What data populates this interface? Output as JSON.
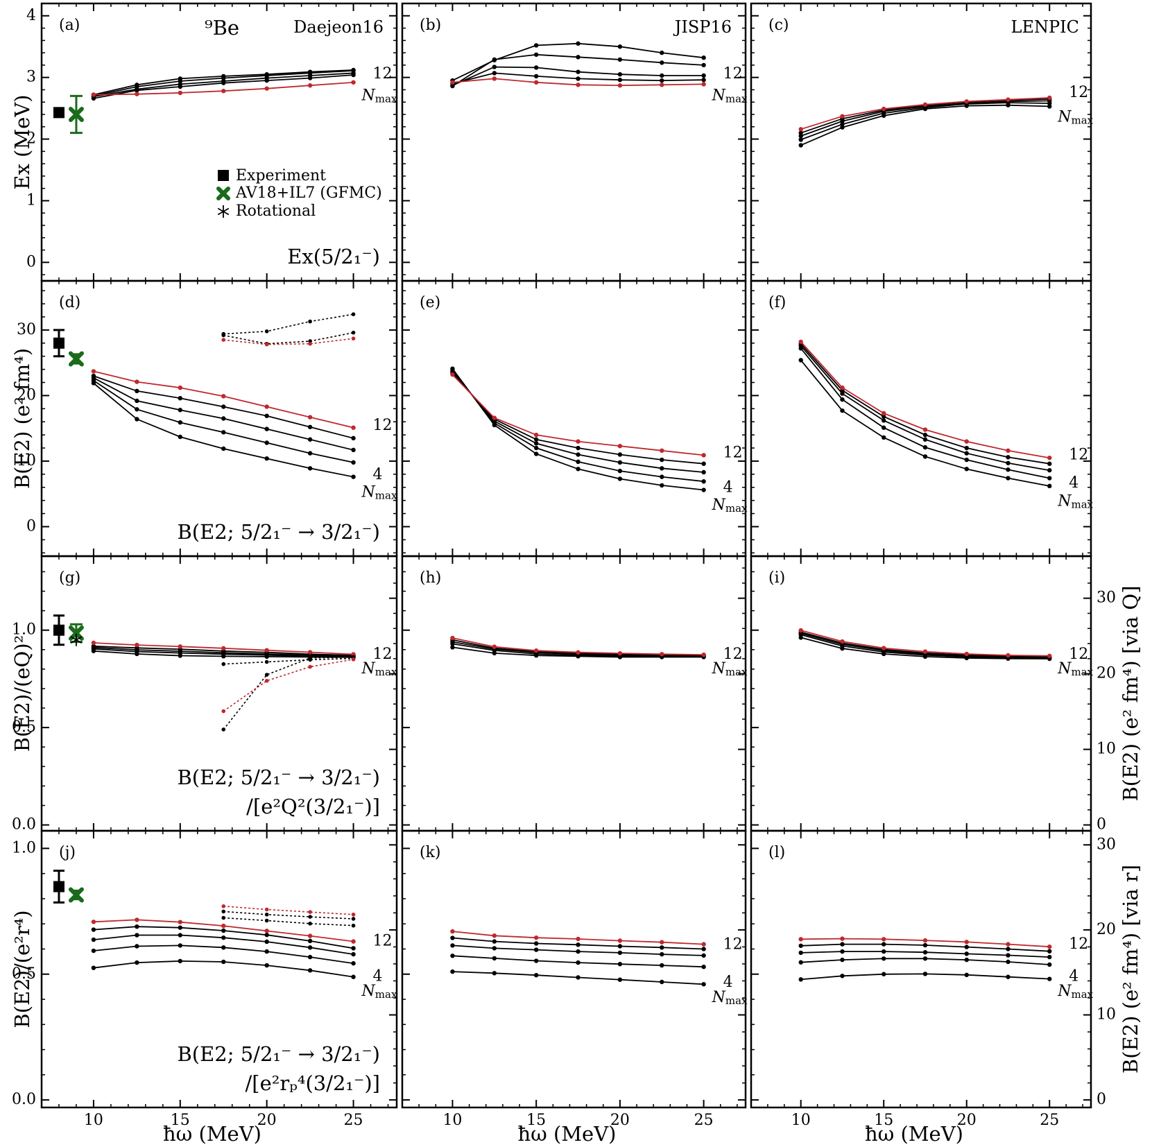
{
  "colors": {
    "black": "#000000",
    "red": "#c0282d",
    "green": "#1a6b1a"
  },
  "x_ticks": [
    "10",
    "15",
    "20",
    "25"
  ],
  "x_axis_label": "ħω (MeV)",
  "rows": [
    {
      "ylim": [
        -0.3,
        4.2
      ],
      "ytick_values": [
        0,
        1,
        2,
        3,
        4
      ],
      "ytick_labels": [
        "0",
        "1",
        "2",
        "3",
        "4"
      ],
      "ylabel": "Ex (MeV)",
      "obs_label": [
        "Ex(5/2₁⁻)"
      ]
    },
    {
      "ylim": [
        -4.5,
        37.5
      ],
      "ytick_values": [
        0,
        10,
        20,
        30
      ],
      "ytick_labels": [
        "0",
        "10",
        "20",
        "30"
      ],
      "ylabel": "B(E2) (e² fm⁴)",
      "obs_label": [
        "B(E2; 5/2₁⁻ → 3/2₁⁻)"
      ]
    },
    {
      "ylim": [
        -0.03,
        1.38
      ],
      "ytick_values": [
        0,
        0.5,
        1.0
      ],
      "ytick_labels": [
        "0.0",
        "0.5",
        "1.0"
      ],
      "ylabel": "B(E2)/(eQ)²",
      "obs_label": [
        "B(E2; 5/2₁⁻ → 3/2₁⁻)",
        "/[e²Q²(3/2₁⁻)]"
      ],
      "right_axis": {
        "scale": 0.0388,
        "tick_values": [
          0,
          10,
          20,
          30
        ],
        "tick_labels": [
          "0",
          "10",
          "20",
          "30"
        ],
        "label": "B(E2) (e² fm⁴)  [via Q]"
      }
    },
    {
      "ylim": [
        -0.03,
        1.07
      ],
      "ytick_values": [
        0,
        0.5,
        1.0
      ],
      "ytick_labels": [
        "0.0",
        "0.5",
        "1.0"
      ],
      "ylabel": "B(E2)/(e²r⁴)",
      "obs_label": [
        "B(E2; 5/2₁⁻ → 3/2₁⁻)",
        "/[e²rₚ⁴(3/2₁⁻)]"
      ],
      "right_axis": {
        "scale": 0.0338,
        "tick_values": [
          0,
          10,
          20,
          30
        ],
        "tick_labels": [
          "0",
          "10",
          "20",
          "30"
        ],
        "label": "B(E2) (e² fm⁴)  [via r]"
      }
    }
  ],
  "columns": [
    {
      "interaction": "Daejeon16",
      "nucleus": "⁹Be"
    },
    {
      "interaction": "JISP16"
    },
    {
      "interaction": "LENPIC"
    }
  ],
  "legend": [
    "Experiment",
    "AV18+IL7 (GFMC)",
    "Rotational"
  ],
  "chart_data": {
    "type": "line",
    "title": "⁹Be",
    "xlabel": "ħω (MeV)",
    "xlim": [
      7,
      27.5
    ],
    "x": [
      10,
      12.5,
      15,
      17.5,
      20,
      22.5,
      25
    ],
    "x_dashed": [
      17.5,
      20,
      22.5,
      25
    ],
    "nmax_label": "Nmax",
    "panels": [
      {
        "id": "(a)",
        "row": 0,
        "col": 0,
        "series": [
          [
            2.66,
            2.79,
            2.85,
            2.91,
            2.95,
            2.99,
            3.04
          ],
          [
            2.69,
            2.81,
            2.89,
            2.94,
            2.99,
            3.03,
            3.07
          ],
          [
            2.7,
            2.85,
            2.94,
            2.99,
            3.03,
            3.07,
            3.11
          ],
          [
            2.72,
            2.88,
            2.98,
            3.02,
            3.05,
            3.09,
            3.12
          ],
          [
            2.72,
            2.73,
            2.75,
            2.78,
            2.82,
            2.87,
            2.92
          ]
        ],
        "dashed": [],
        "nmax_labels": [
          {
            "text": "12",
            "y": 3.05
          }
        ],
        "nmax_label_y": 2.7,
        "experiment": {
          "x": 8,
          "y": 2.43
        },
        "gfmc": {
          "x": 9,
          "y": 2.4,
          "err": 0.3
        }
      },
      {
        "id": "(b)",
        "row": 0,
        "col": 1,
        "series": [
          [
            2.86,
            3.29,
            3.37,
            3.33,
            3.29,
            3.24,
            3.2
          ],
          [
            2.87,
            3.17,
            3.16,
            3.09,
            3.05,
            3.03,
            3.03
          ],
          [
            2.9,
            3.07,
            3.02,
            2.98,
            2.96,
            2.95,
            2.96
          ],
          [
            2.95,
            3.28,
            3.52,
            3.55,
            3.5,
            3.4,
            3.32
          ],
          [
            2.92,
            2.98,
            2.92,
            2.88,
            2.87,
            2.88,
            2.89
          ]
        ],
        "dashed": [],
        "nmax_labels": [
          {
            "text": "12",
            "y": 3.05
          }
        ],
        "nmax_label_y": 2.7
      },
      {
        "id": "(c)",
        "row": 0,
        "col": 2,
        "series": [
          [
            1.9,
            2.19,
            2.38,
            2.49,
            2.54,
            2.55,
            2.53
          ],
          [
            1.99,
            2.24,
            2.42,
            2.51,
            2.57,
            2.59,
            2.58
          ],
          [
            2.05,
            2.29,
            2.45,
            2.53,
            2.58,
            2.61,
            2.62
          ],
          [
            2.1,
            2.33,
            2.47,
            2.55,
            2.6,
            2.63,
            2.65
          ],
          [
            2.16,
            2.37,
            2.49,
            2.56,
            2.61,
            2.64,
            2.67
          ]
        ],
        "dashed": [],
        "nmax_labels": [
          {
            "text": "12",
            "y": 2.75
          }
        ],
        "nmax_label_y": 2.35
      },
      {
        "id": "(d)",
        "row": 1,
        "col": 0,
        "series": [
          [
            21.9,
            16.4,
            13.7,
            11.9,
            10.4,
            8.9,
            7.6
          ],
          [
            22.3,
            17.9,
            15.9,
            14.4,
            12.8,
            11.2,
            9.8
          ],
          [
            22.7,
            19.2,
            17.8,
            16.5,
            14.9,
            13.3,
            11.7
          ],
          [
            23.0,
            20.7,
            19.6,
            18.3,
            16.9,
            15.2,
            13.5
          ],
          [
            23.7,
            22.1,
            21.2,
            19.9,
            18.3,
            16.7,
            15.1
          ]
        ],
        "dashed": [
          [
            29.4,
            29.8,
            31.3,
            32.4
          ],
          [
            29.2,
            27.9,
            28.3,
            29.6
          ],
          [
            28.5,
            27.8,
            27.9,
            28.7
          ]
        ],
        "nmax_labels": [
          {
            "text": "12",
            "y": 15.4
          },
          {
            "text": "4",
            "y": 7.9
          }
        ],
        "nmax_label_y": 5.2,
        "experiment": {
          "x": 8,
          "y": 28,
          "err": 2
        },
        "gfmc": {
          "x": 9,
          "y": 25.6,
          "err": 0.7
        }
      },
      {
        "id": "(e)",
        "row": 1,
        "col": 1,
        "series": [
          [
            24.1,
            15.5,
            11.1,
            8.8,
            7.3,
            6.3,
            5.6
          ],
          [
            23.8,
            15.8,
            12.0,
            9.9,
            8.5,
            7.6,
            6.9
          ],
          [
            23.6,
            16.1,
            12.7,
            11.0,
            9.8,
            8.9,
            8.3
          ],
          [
            23.4,
            16.4,
            13.3,
            12.0,
            11.0,
            10.2,
            9.6
          ],
          [
            23.2,
            16.6,
            14.0,
            13.0,
            12.3,
            11.6,
            10.9
          ]
        ],
        "dashed": [],
        "nmax_labels": [
          {
            "text": "12",
            "y": 11.2
          },
          {
            "text": "4",
            "y": 5.9
          }
        ],
        "nmax_label_y": 3.2
      },
      {
        "id": "(f)",
        "row": 1,
        "col": 2,
        "series": [
          [
            25.4,
            17.7,
            13.6,
            10.7,
            8.8,
            7.4,
            6.2
          ],
          [
            27.2,
            19.4,
            15.1,
            12.1,
            10.2,
            8.7,
            7.4
          ],
          [
            27.6,
            20.3,
            16.2,
            13.3,
            11.2,
            9.7,
            8.6
          ],
          [
            27.9,
            20.8,
            16.8,
            14.0,
            12.0,
            10.6,
            9.6
          ],
          [
            28.2,
            21.2,
            17.3,
            14.8,
            13.0,
            11.6,
            10.5
          ]
        ],
        "dashed": [],
        "nmax_labels": [
          {
            "text": "12",
            "y": 10.9
          },
          {
            "text": "4",
            "y": 6.6
          }
        ],
        "nmax_label_y": 3.8
      },
      {
        "id": "(g)",
        "row": 2,
        "col": 0,
        "series": [
          [
            0.893,
            0.878,
            0.869,
            0.866,
            0.864,
            0.862,
            0.861
          ],
          [
            0.904,
            0.89,
            0.883,
            0.877,
            0.872,
            0.866,
            0.864
          ],
          [
            0.911,
            0.899,
            0.892,
            0.884,
            0.878,
            0.872,
            0.867
          ],
          [
            0.918,
            0.909,
            0.902,
            0.893,
            0.886,
            0.877,
            0.871
          ],
          [
            0.935,
            0.924,
            0.916,
            0.907,
            0.897,
            0.887,
            0.876
          ]
        ],
        "dashed": [
          [
            0.49,
            0.771,
            0.857,
            0.862
          ],
          [
            0.826,
            0.837,
            0.848,
            0.855
          ],
          [
            0.584,
            0.74,
            0.812,
            0.85
          ]
        ],
        "nmax_labels": [
          {
            "text": "12",
            "y": 0.875
          }
        ],
        "nmax_label_y": 0.8,
        "experiment": {
          "x": 8,
          "y": 1.0,
          "err": 0.075
        },
        "gfmc": {
          "x": 9,
          "y": 0.985,
          "err": 0.045
        },
        "rotational": {
          "x": 9,
          "y": 0.95
        }
      },
      {
        "id": "(h)",
        "row": 2,
        "col": 1,
        "series": [
          [
            0.912,
            0.882,
            0.87,
            0.866,
            0.862,
            0.862,
            0.862
          ],
          [
            0.93,
            0.896,
            0.878,
            0.871,
            0.868,
            0.866,
            0.866
          ],
          [
            0.94,
            0.903,
            0.885,
            0.876,
            0.872,
            0.87,
            0.869
          ],
          [
            0.95,
            0.908,
            0.89,
            0.881,
            0.877,
            0.874,
            0.872
          ],
          [
            0.96,
            0.915,
            0.895,
            0.886,
            0.881,
            0.877,
            0.874
          ]
        ],
        "dashed": [],
        "nmax_labels": [
          {
            "text": "12",
            "y": 0.875
          }
        ],
        "nmax_label_y": 0.8
      },
      {
        "id": "(i)",
        "row": 2,
        "col": 2,
        "series": [
          [
            0.962,
            0.906,
            0.878,
            0.864,
            0.857,
            0.854,
            0.853
          ],
          [
            0.977,
            0.919,
            0.888,
            0.872,
            0.863,
            0.858,
            0.857
          ],
          [
            0.984,
            0.927,
            0.895,
            0.877,
            0.867,
            0.862,
            0.86
          ],
          [
            0.99,
            0.934,
            0.901,
            0.883,
            0.872,
            0.866,
            0.863
          ],
          [
            0.999,
            0.942,
            0.908,
            0.89,
            0.878,
            0.871,
            0.868
          ]
        ],
        "dashed": [],
        "nmax_labels": [
          {
            "text": "12",
            "y": 0.875
          }
        ],
        "nmax_label_y": 0.8
      },
      {
        "id": "(j)",
        "row": 3,
        "col": 0,
        "series": [
          [
            0.525,
            0.546,
            0.552,
            0.549,
            0.535,
            0.515,
            0.489
          ],
          [
            0.593,
            0.611,
            0.614,
            0.606,
            0.59,
            0.568,
            0.543
          ],
          [
            0.637,
            0.655,
            0.655,
            0.645,
            0.629,
            0.606,
            0.579
          ],
          [
            0.677,
            0.689,
            0.685,
            0.673,
            0.656,
            0.632,
            0.603
          ],
          [
            0.708,
            0.716,
            0.707,
            0.692,
            0.672,
            0.652,
            0.63
          ]
        ],
        "dashed": [
          [
            0.724,
            0.713,
            0.701,
            0.693
          ],
          [
            0.749,
            0.737,
            0.728,
            0.72
          ],
          [
            0.77,
            0.757,
            0.747,
            0.737
          ]
        ],
        "nmax_labels": [
          {
            "text": "12",
            "y": 0.63
          },
          {
            "text": "4",
            "y": 0.49
          }
        ],
        "nmax_label_y": 0.43,
        "experiment": {
          "x": 8,
          "y": 0.848,
          "err": 0.063
        },
        "gfmc": {
          "x": 9,
          "y": 0.815,
          "err": 0.017
        }
      },
      {
        "id": "(k)",
        "row": 3,
        "col": 1,
        "series": [
          [
            0.51,
            0.504,
            0.496,
            0.487,
            0.478,
            0.469,
            0.46
          ],
          [
            0.573,
            0.563,
            0.553,
            0.546,
            0.54,
            0.535,
            0.529
          ],
          [
            0.614,
            0.603,
            0.597,
            0.59,
            0.585,
            0.579,
            0.574
          ],
          [
            0.644,
            0.63,
            0.622,
            0.617,
            0.611,
            0.606,
            0.6
          ],
          [
            0.67,
            0.653,
            0.645,
            0.64,
            0.633,
            0.627,
            0.619
          ]
        ],
        "dashed": [],
        "nmax_labels": [
          {
            "text": "12",
            "y": 0.616
          },
          {
            "text": "4",
            "y": 0.466
          }
        ],
        "nmax_label_y": 0.405
      },
      {
        "id": "(l)",
        "row": 3,
        "col": 2,
        "series": [
          [
            0.479,
            0.493,
            0.5,
            0.501,
            0.497,
            0.489,
            0.481
          ],
          [
            0.547,
            0.557,
            0.562,
            0.562,
            0.557,
            0.549,
            0.538
          ],
          [
            0.585,
            0.59,
            0.59,
            0.587,
            0.581,
            0.575,
            0.568
          ],
          [
            0.613,
            0.619,
            0.619,
            0.615,
            0.608,
            0.6,
            0.591
          ],
          [
            0.639,
            0.641,
            0.639,
            0.634,
            0.628,
            0.619,
            0.609
          ]
        ],
        "dashed": [],
        "nmax_labels": [
          {
            "text": "12",
            "y": 0.618
          },
          {
            "text": "4",
            "y": 0.49
          }
        ],
        "nmax_label_y": 0.43
      }
    ]
  }
}
